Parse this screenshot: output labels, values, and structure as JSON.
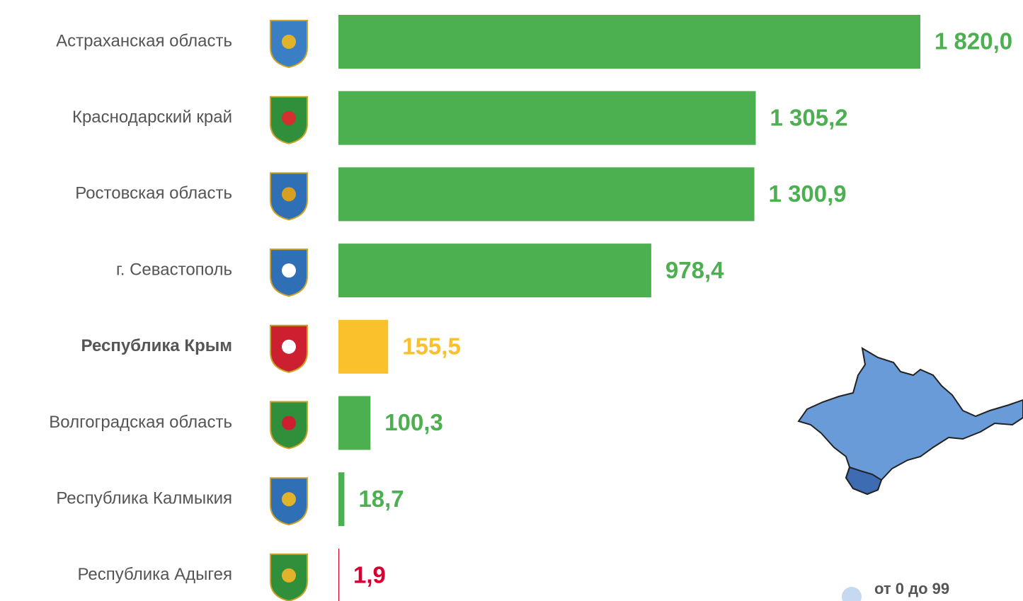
{
  "chart_data": {
    "type": "bar",
    "orientation": "horizontal",
    "categories": [
      "Астраханская область",
      "Краснодарский край",
      "Ростовская область",
      "г. Севастополь",
      "Республика Крым",
      "Волгоградская область",
      "Республика Калмыкия",
      "Республика Адыгея"
    ],
    "values": [
      1820.0,
      1305.2,
      1300.9,
      978.4,
      155.5,
      100.3,
      18.7,
      1.9
    ],
    "value_labels": [
      "1 820,0",
      "1 305,2",
      "1 300,9",
      "978,4",
      "155,5",
      "100,3",
      "18,7",
      "1,9"
    ],
    "colors": [
      "#4caf50",
      "#4caf50",
      "#4caf50",
      "#4caf50",
      "#fbc12d",
      "#4caf50",
      "#4caf50",
      "#d5002f"
    ],
    "bold": [
      false,
      false,
      false,
      false,
      true,
      false,
      false,
      false
    ],
    "legend": [
      {
        "label": "от 0 до 99",
        "color": "#c6d9f1"
      }
    ]
  }
}
